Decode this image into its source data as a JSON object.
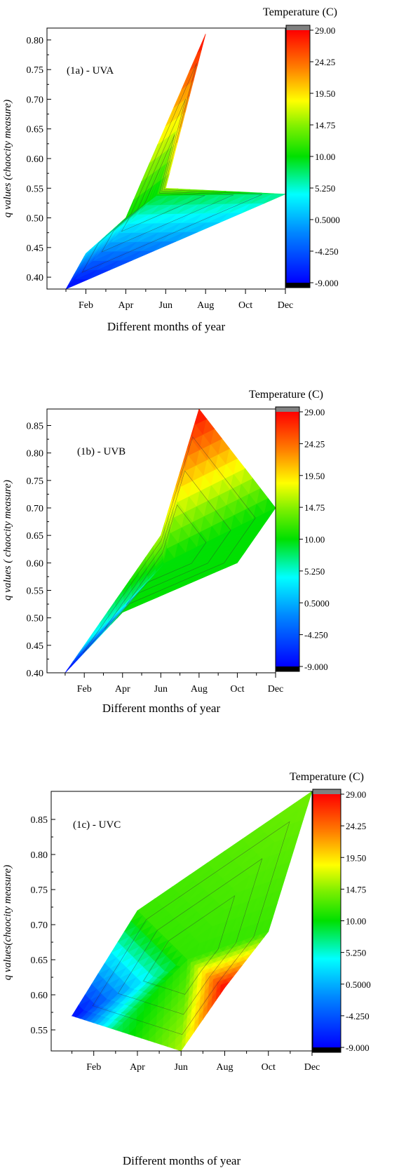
{
  "chart_data": [
    {
      "type": "contour",
      "panel_label": "(1a) - UVA",
      "xlabel": "Different months of year",
      "ylabel": "q values (chaocity measure)",
      "colorbar_title": "Temperature (C)",
      "x_tick_labels": [
        "Feb",
        "Apr",
        "Jun",
        "Aug",
        "Oct",
        "Dec"
      ],
      "x_tick_values": [
        2,
        4,
        6,
        8,
        10,
        12
      ],
      "xlim": [
        0.05,
        12
      ],
      "ylim": [
        0.38,
        0.82
      ],
      "y_ticks": [
        0.4,
        0.45,
        0.5,
        0.55,
        0.6,
        0.65,
        0.7,
        0.75,
        0.8
      ],
      "colorbar_ticks": [
        "29.00",
        "24.25",
        "19.50",
        "14.75",
        "10.00",
        "5.250",
        "0.5000",
        "-4.250",
        "-9.000"
      ],
      "colorbar_range": [
        -9,
        29
      ],
      "points": [
        {
          "x": 1,
          "y": 0.38,
          "t": -9
        },
        {
          "x": 2,
          "y": 0.44,
          "t": 2
        },
        {
          "x": 4,
          "y": 0.5,
          "t": 10
        },
        {
          "x": 6,
          "y": 0.55,
          "t": 16
        },
        {
          "x": 8,
          "y": 0.81,
          "t": 29
        },
        {
          "x": 12,
          "y": 0.54,
          "t": 7
        }
      ]
    },
    {
      "type": "contour",
      "panel_label": "(1b) - UVB",
      "xlabel": "Different months of year",
      "ylabel": "q values ( chaocity measure)",
      "colorbar_title": "Temperature (C)",
      "x_tick_labels": [
        "Feb",
        "Apr",
        "Jun",
        "Aug",
        "Oct",
        "Dec"
      ],
      "x_tick_values": [
        2,
        4,
        6,
        8,
        10,
        12
      ],
      "xlim": [
        0.05,
        12
      ],
      "ylim": [
        0.4,
        0.88
      ],
      "y_ticks": [
        0.4,
        0.45,
        0.5,
        0.55,
        0.6,
        0.65,
        0.7,
        0.75,
        0.8,
        0.85
      ],
      "colorbar_ticks": [
        "29.00",
        "24.25",
        "19.50",
        "14.75",
        "10.00",
        "5.250",
        "0.5000",
        "-4.250",
        "-9.000"
      ],
      "colorbar_range": [
        -9,
        29
      ],
      "points": [
        {
          "x": 1,
          "y": 0.4,
          "t": -9
        },
        {
          "x": 2,
          "y": 0.45,
          "t": 3
        },
        {
          "x": 4,
          "y": 0.51,
          "t": 10
        },
        {
          "x": 6,
          "y": 0.65,
          "t": 16
        },
        {
          "x": 8,
          "y": 0.88,
          "t": 29
        },
        {
          "x": 10,
          "y": 0.6,
          "t": 10
        },
        {
          "x": 12,
          "y": 0.7,
          "t": 10
        }
      ]
    },
    {
      "type": "contour",
      "panel_label": "(1c) - UVC",
      "xlabel": "Different months of year",
      "ylabel": "q values(chaocity measure)",
      "colorbar_title": "Temperature (C)",
      "x_tick_labels": [
        "Feb",
        "Apr",
        "Jun",
        "Aug",
        "Oct",
        "Dec"
      ],
      "x_tick_values": [
        2,
        4,
        6,
        8,
        10,
        12
      ],
      "xlim": [
        0.05,
        12
      ],
      "ylim": [
        0.52,
        0.89
      ],
      "y_ticks": [
        0.55,
        0.6,
        0.65,
        0.7,
        0.75,
        0.8,
        0.85
      ],
      "colorbar_ticks": [
        "29.00",
        "24.25",
        "19.50",
        "14.75",
        "10.00",
        "5.250",
        "0.5000",
        "-4.250",
        "-9.000"
      ],
      "colorbar_range": [
        -9,
        29
      ],
      "points": [
        {
          "x": 1,
          "y": 0.57,
          "t": -9
        },
        {
          "x": 3,
          "y": 0.55,
          "t": 8
        },
        {
          "x": 4,
          "y": 0.72,
          "t": 12
        },
        {
          "x": 6,
          "y": 0.52,
          "t": 16
        },
        {
          "x": 8,
          "y": 0.61,
          "t": 29
        },
        {
          "x": 10,
          "y": 0.69,
          "t": 12
        },
        {
          "x": 12,
          "y": 0.89,
          "t": 14
        }
      ]
    }
  ]
}
